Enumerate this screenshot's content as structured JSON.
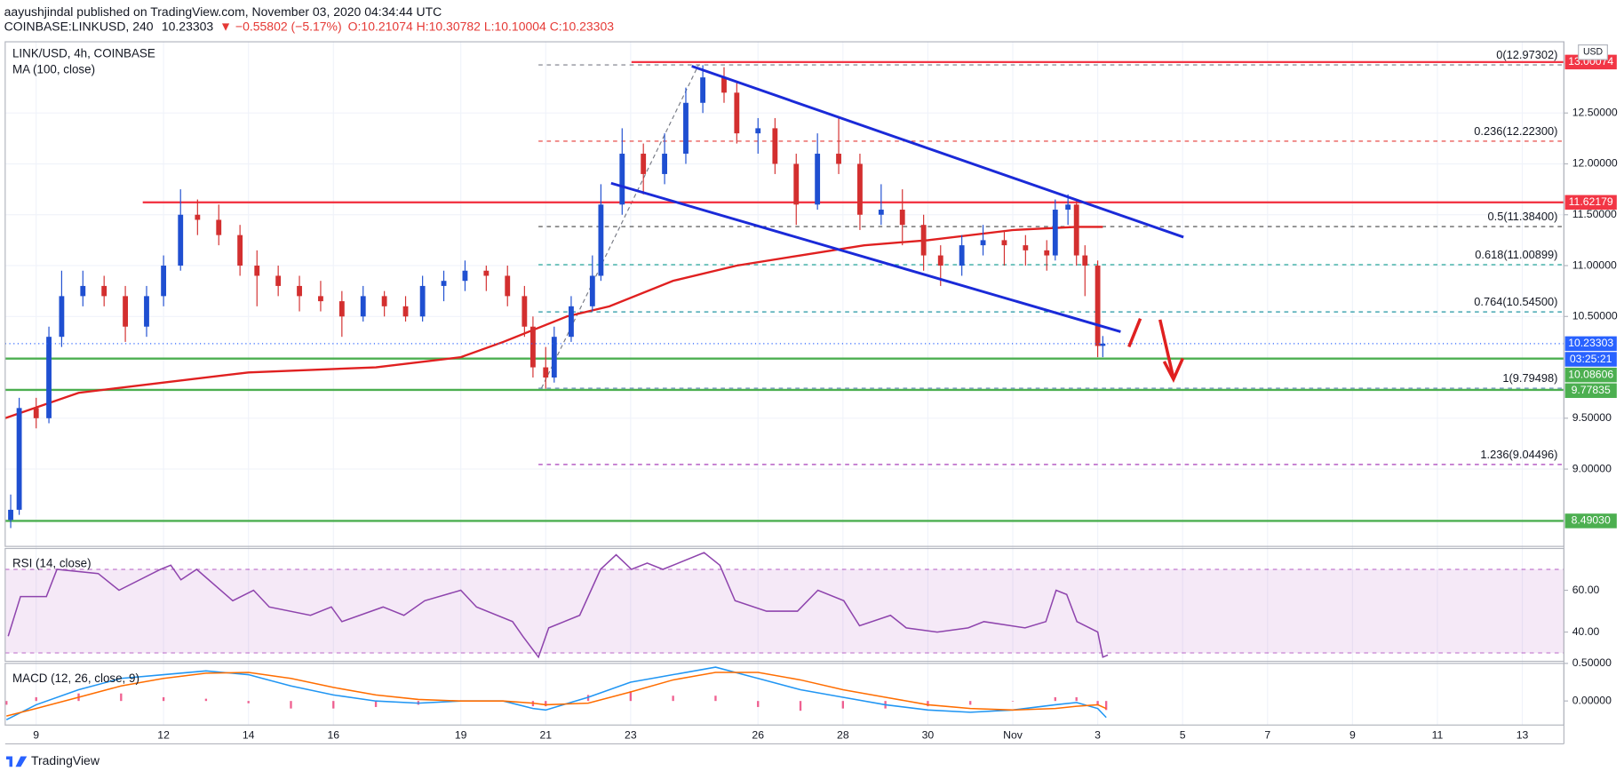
{
  "header": {
    "author_line": "aayushjindal published on TradingView.com, November 03, 2020 04:34:44 UTC",
    "symbol": "COINBASE:LINKUSD, 240",
    "last": "10.23303",
    "change": "▼ −0.55802 (−5.17%)",
    "ohlc": "O:10.21074 H:10.30782 L:10.10004 C:10.23303",
    "footer": "TradingView"
  },
  "chart_data": {
    "type": "candlestick",
    "title": "LINK/USD, 4h, COINBASE",
    "currency": "USD",
    "up_color": "#1f4fd1",
    "down_color": "#d32f2f",
    "grid": true,
    "xlim": [
      -0.73,
      35.98
    ],
    "ylim": [
      8.24,
      13.2
    ],
    "xticks": [
      {
        "value": 0,
        "label": "9"
      },
      {
        "value": 3,
        "label": "12"
      },
      {
        "value": 5,
        "label": "14"
      },
      {
        "value": 7,
        "label": "16"
      },
      {
        "value": 10,
        "label": "19"
      },
      {
        "value": 12,
        "label": "21"
      },
      {
        "value": 14,
        "label": "23"
      },
      {
        "value": 17,
        "label": "26"
      },
      {
        "value": 19,
        "label": "28"
      },
      {
        "value": 21,
        "label": "30"
      },
      {
        "value": 23,
        "label": "Nov"
      },
      {
        "value": 25,
        "label": "3"
      },
      {
        "value": 27,
        "label": "5"
      },
      {
        "value": 29,
        "label": "7"
      },
      {
        "value": 31,
        "label": "9"
      },
      {
        "value": 33,
        "label": "11"
      },
      {
        "value": 35,
        "label": "13"
      }
    ],
    "yticks": [
      {
        "value": 9,
        "label": "9.00000"
      },
      {
        "value": 9.5,
        "label": "9.50000"
      },
      {
        "value": 10.5,
        "label": "10.50000"
      },
      {
        "value": 11,
        "label": "11.00000"
      },
      {
        "value": 11.5,
        "label": "11.50000"
      },
      {
        "value": 12,
        "label": "12.00000"
      },
      {
        "value": 12.5,
        "label": "12.50000"
      }
    ],
    "candles": [
      [
        -0.6,
        8.5,
        8.75,
        8.42,
        8.6
      ],
      [
        -0.4,
        8.6,
        9.7,
        8.55,
        9.6
      ],
      [
        0,
        9.6,
        9.7,
        9.4,
        9.5
      ],
      [
        0.3,
        9.5,
        10.4,
        9.45,
        10.3
      ],
      [
        0.6,
        10.3,
        10.95,
        10.2,
        10.7
      ],
      [
        1.1,
        10.7,
        10.95,
        10.6,
        10.8
      ],
      [
        1.6,
        10.8,
        10.9,
        10.6,
        10.7
      ],
      [
        2.1,
        10.7,
        10.8,
        10.25,
        10.4
      ],
      [
        2.6,
        10.4,
        10.8,
        10.3,
        10.7
      ],
      [
        3.0,
        10.7,
        11.1,
        10.6,
        11.0
      ],
      [
        3.4,
        11.0,
        11.75,
        10.95,
        11.5
      ],
      [
        3.8,
        11.5,
        11.65,
        11.3,
        11.45
      ],
      [
        4.3,
        11.45,
        11.6,
        11.2,
        11.3
      ],
      [
        4.8,
        11.3,
        11.4,
        10.9,
        11.0
      ],
      [
        5.2,
        11.0,
        11.15,
        10.6,
        10.9
      ],
      [
        5.7,
        10.9,
        11.0,
        10.7,
        10.8
      ],
      [
        6.2,
        10.8,
        10.9,
        10.55,
        10.7
      ],
      [
        6.7,
        10.7,
        10.85,
        10.55,
        10.65
      ],
      [
        7.2,
        10.65,
        10.75,
        10.3,
        10.5
      ],
      [
        7.7,
        10.5,
        10.8,
        10.45,
        10.7
      ],
      [
        8.2,
        10.7,
        10.75,
        10.5,
        10.6
      ],
      [
        8.7,
        10.6,
        10.7,
        10.45,
        10.5
      ],
      [
        9.1,
        10.5,
        10.9,
        10.45,
        10.8
      ],
      [
        9.6,
        10.8,
        10.95,
        10.65,
        10.85
      ],
      [
        10.1,
        10.85,
        11.05,
        10.75,
        10.95
      ],
      [
        10.6,
        10.95,
        11.0,
        10.75,
        10.9
      ],
      [
        11.1,
        10.9,
        11.0,
        10.6,
        10.7
      ],
      [
        11.5,
        10.7,
        10.8,
        10.3,
        10.4
      ],
      [
        11.7,
        10.4,
        10.5,
        9.9,
        10.0
      ],
      [
        12.0,
        10.0,
        10.2,
        9.79,
        9.9
      ],
      [
        12.2,
        9.9,
        10.4,
        9.85,
        10.3
      ],
      [
        12.6,
        10.3,
        10.7,
        10.25,
        10.6
      ],
      [
        13.1,
        10.6,
        11.1,
        10.55,
        10.9
      ],
      [
        13.3,
        10.9,
        11.8,
        10.85,
        11.6
      ],
      [
        13.8,
        11.6,
        12.35,
        11.5,
        12.1
      ],
      [
        14.3,
        12.1,
        12.2,
        11.7,
        11.9
      ],
      [
        14.8,
        11.9,
        12.3,
        11.8,
        12.1
      ],
      [
        15.3,
        12.1,
        12.75,
        12.0,
        12.6
      ],
      [
        15.7,
        12.6,
        12.97,
        12.5,
        12.85
      ],
      [
        16.2,
        12.85,
        12.95,
        12.6,
        12.7
      ],
      [
        16.5,
        12.7,
        12.8,
        12.2,
        12.3
      ],
      [
        17.0,
        12.3,
        12.45,
        12.1,
        12.35
      ],
      [
        17.4,
        12.35,
        12.45,
        11.9,
        12.0
      ],
      [
        17.9,
        12.0,
        12.1,
        11.4,
        11.6
      ],
      [
        18.4,
        11.6,
        12.3,
        11.55,
        12.1
      ],
      [
        18.9,
        12.1,
        12.45,
        11.9,
        12.0
      ],
      [
        19.4,
        12.0,
        12.1,
        11.35,
        11.5
      ],
      [
        19.9,
        11.5,
        11.8,
        11.4,
        11.55
      ],
      [
        20.4,
        11.55,
        11.75,
        11.2,
        11.4
      ],
      [
        20.9,
        11.4,
        11.5,
        10.95,
        11.1
      ],
      [
        21.3,
        11.1,
        11.2,
        10.8,
        11.0
      ],
      [
        21.8,
        11.0,
        11.3,
        10.9,
        11.2
      ],
      [
        22.3,
        11.2,
        11.4,
        11.1,
        11.25
      ],
      [
        22.8,
        11.25,
        11.35,
        11.0,
        11.2
      ],
      [
        23.3,
        11.2,
        11.3,
        11.0,
        11.15
      ],
      [
        23.8,
        11.15,
        11.25,
        10.95,
        11.1
      ],
      [
        24.0,
        11.1,
        11.65,
        11.05,
        11.55
      ],
      [
        24.3,
        11.55,
        11.7,
        11.4,
        11.6
      ],
      [
        24.5,
        11.6,
        11.65,
        11.0,
        11.1
      ],
      [
        24.7,
        11.1,
        11.2,
        10.7,
        11.0
      ],
      [
        25.0,
        11.0,
        11.05,
        10.1,
        10.21
      ],
      [
        25.12,
        10.21074,
        10.30782,
        10.10004,
        10.23303
      ]
    ],
    "ma": {
      "name": "MA (100, close)",
      "color": "#e02020",
      "x": [
        -0.73,
        1,
        3,
        5,
        8,
        10,
        11,
        12.5,
        13.5,
        15,
        16.5,
        18,
        19.5,
        21,
        23,
        24.5,
        25.12
      ],
      "values": [
        9.5,
        9.75,
        9.85,
        9.95,
        10.0,
        10.1,
        10.25,
        10.5,
        10.6,
        10.85,
        11.0,
        11.1,
        11.2,
        11.25,
        11.35,
        11.38,
        11.38
      ]
    },
    "levels": [
      {
        "value": 13.00074,
        "label": "13.00074",
        "color": "#f23645",
        "start": 14.02
      },
      {
        "value": 11.62179,
        "label": "11.62179",
        "color": "#f23645",
        "start": 2.51
      },
      {
        "value": 10.08606,
        "label": "10.08606",
        "color": "#4caf50"
      },
      {
        "value": 9.77835,
        "label": "9.77835",
        "color": "#4caf50"
      },
      {
        "value": 8.4903,
        "label": "8.49030",
        "color": "#4caf50"
      }
    ],
    "last_price": {
      "value": 10.23303,
      "label": "10.23303",
      "color": "#2962ff",
      "countdown": "03:25:21"
    },
    "fib": {
      "start": 11.83,
      "anchor": [
        [
          11.9,
          9.79498
        ],
        [
          15.6,
          12.97302
        ]
      ],
      "levels": [
        {
          "value": 12.97302,
          "label": "0(12.97302)",
          "color": "#787b86"
        },
        {
          "value": 12.223,
          "label": "0.236(12.22300)",
          "color": "#e53935"
        },
        {
          "value": 11.384,
          "label": "0.5(11.38400)",
          "color": "#444444"
        },
        {
          "value": 11.00899,
          "label": "0.618(11.00899)",
          "color": "#26a69a"
        },
        {
          "value": 10.545,
          "label": "0.764(10.54500)",
          "color": "#2196a3"
        },
        {
          "value": 9.79498,
          "label": "1(9.79498)",
          "color": "#5b7fb5"
        },
        {
          "value": 9.04496,
          "label": "1.236(9.04496)",
          "color": "#9c27b0"
        }
      ]
    },
    "trendlines": [
      {
        "color": "#1a2ad8",
        "points": [
          [
            15.44,
            12.96
          ],
          [
            27.02,
            11.28
          ]
        ]
      },
      {
        "color": "#1a2ad8",
        "points": [
          [
            13.54,
            11.81
          ],
          [
            25.54,
            10.35
          ]
        ]
      }
    ],
    "rsi": {
      "name": "RSI (14, close)",
      "color": "#8e44ad",
      "ylim": [
        26,
        80
      ],
      "band": [
        30,
        70
      ],
      "yticks": [
        {
          "value": 40,
          "label": "40.00"
        },
        {
          "value": 60,
          "label": "60.00"
        }
      ],
      "x": [
        -0.66,
        -0.37,
        0.24,
        0.49,
        1.46,
        1.95,
        2.93,
        3.17,
        3.41,
        3.78,
        4.63,
        5.12,
        5.49,
        6.46,
        6.95,
        7.2,
        8.17,
        8.66,
        9.15,
        10.0,
        10.37,
        11.22,
        11.46,
        11.83,
        12.07,
        12.8,
        13.29,
        13.66,
        14.02,
        14.39,
        14.76,
        15.73,
        16.1,
        16.46,
        17.2,
        17.93,
        18.41,
        19.02,
        19.39,
        20.12,
        20.49,
        21.22,
        21.95,
        22.32,
        23.29,
        23.78,
        24.02,
        24.27,
        24.51,
        25.0,
        25.12,
        25.24
      ],
      "values": [
        38,
        57,
        57,
        70,
        68,
        60,
        70,
        72,
        65,
        70,
        55,
        60,
        52,
        48,
        52,
        45,
        52,
        48,
        55,
        60,
        52,
        45,
        38,
        28,
        42,
        48,
        70,
        77,
        70,
        73,
        70,
        78,
        72,
        55,
        50,
        50,
        60,
        55,
        43,
        48,
        42,
        40,
        42,
        45,
        42,
        45,
        60,
        58,
        45,
        40,
        28,
        29
      ]
    },
    "macd": {
      "name": "MACD (12, 26, close, 9)",
      "macd_color": "#2196f3",
      "signal_color": "#ff6d00",
      "histogram_color": "#e91e63",
      "ylim": [
        -0.32,
        0.5
      ],
      "yticks": [
        {
          "value": 0,
          "label": "0.00000"
        },
        {
          "value": 0.5,
          "label": "0.50000"
        }
      ],
      "x": [
        -0.7,
        0,
        1,
        2,
        3,
        4,
        5,
        6,
        7,
        8,
        9,
        10,
        11,
        11.7,
        12,
        13,
        14,
        15,
        16,
        17,
        18,
        19,
        20,
        21,
        22,
        23,
        24,
        24.5,
        25,
        25.2
      ],
      "macd": [
        -0.25,
        -0.05,
        0.15,
        0.3,
        0.35,
        0.4,
        0.35,
        0.2,
        0.08,
        0.0,
        -0.03,
        0.0,
        0.0,
        -0.1,
        -0.12,
        0.05,
        0.25,
        0.35,
        0.45,
        0.3,
        0.15,
        0.05,
        -0.05,
        -0.12,
        -0.15,
        -0.12,
        -0.05,
        -0.02,
        -0.1,
        -0.22
      ],
      "signal": [
        -0.2,
        -0.1,
        0.05,
        0.2,
        0.3,
        0.37,
        0.38,
        0.3,
        0.18,
        0.08,
        0.02,
        0.0,
        0.0,
        -0.03,
        -0.05,
        -0.03,
        0.12,
        0.28,
        0.38,
        0.38,
        0.28,
        0.15,
        0.05,
        -0.05,
        -0.1,
        -0.12,
        -0.1,
        -0.07,
        -0.05,
        -0.1
      ],
      "histogram": [
        -0.05,
        0.05,
        0.1,
        0.1,
        0.05,
        0.03,
        -0.03,
        -0.1,
        -0.1,
        -0.08,
        -0.05,
        0,
        0,
        -0.07,
        -0.07,
        0.08,
        0.13,
        0.07,
        0.07,
        -0.08,
        -0.13,
        -0.1,
        -0.1,
        -0.07,
        -0.05,
        0,
        0.05,
        0.05,
        -0.05,
        -0.12
      ]
    }
  }
}
